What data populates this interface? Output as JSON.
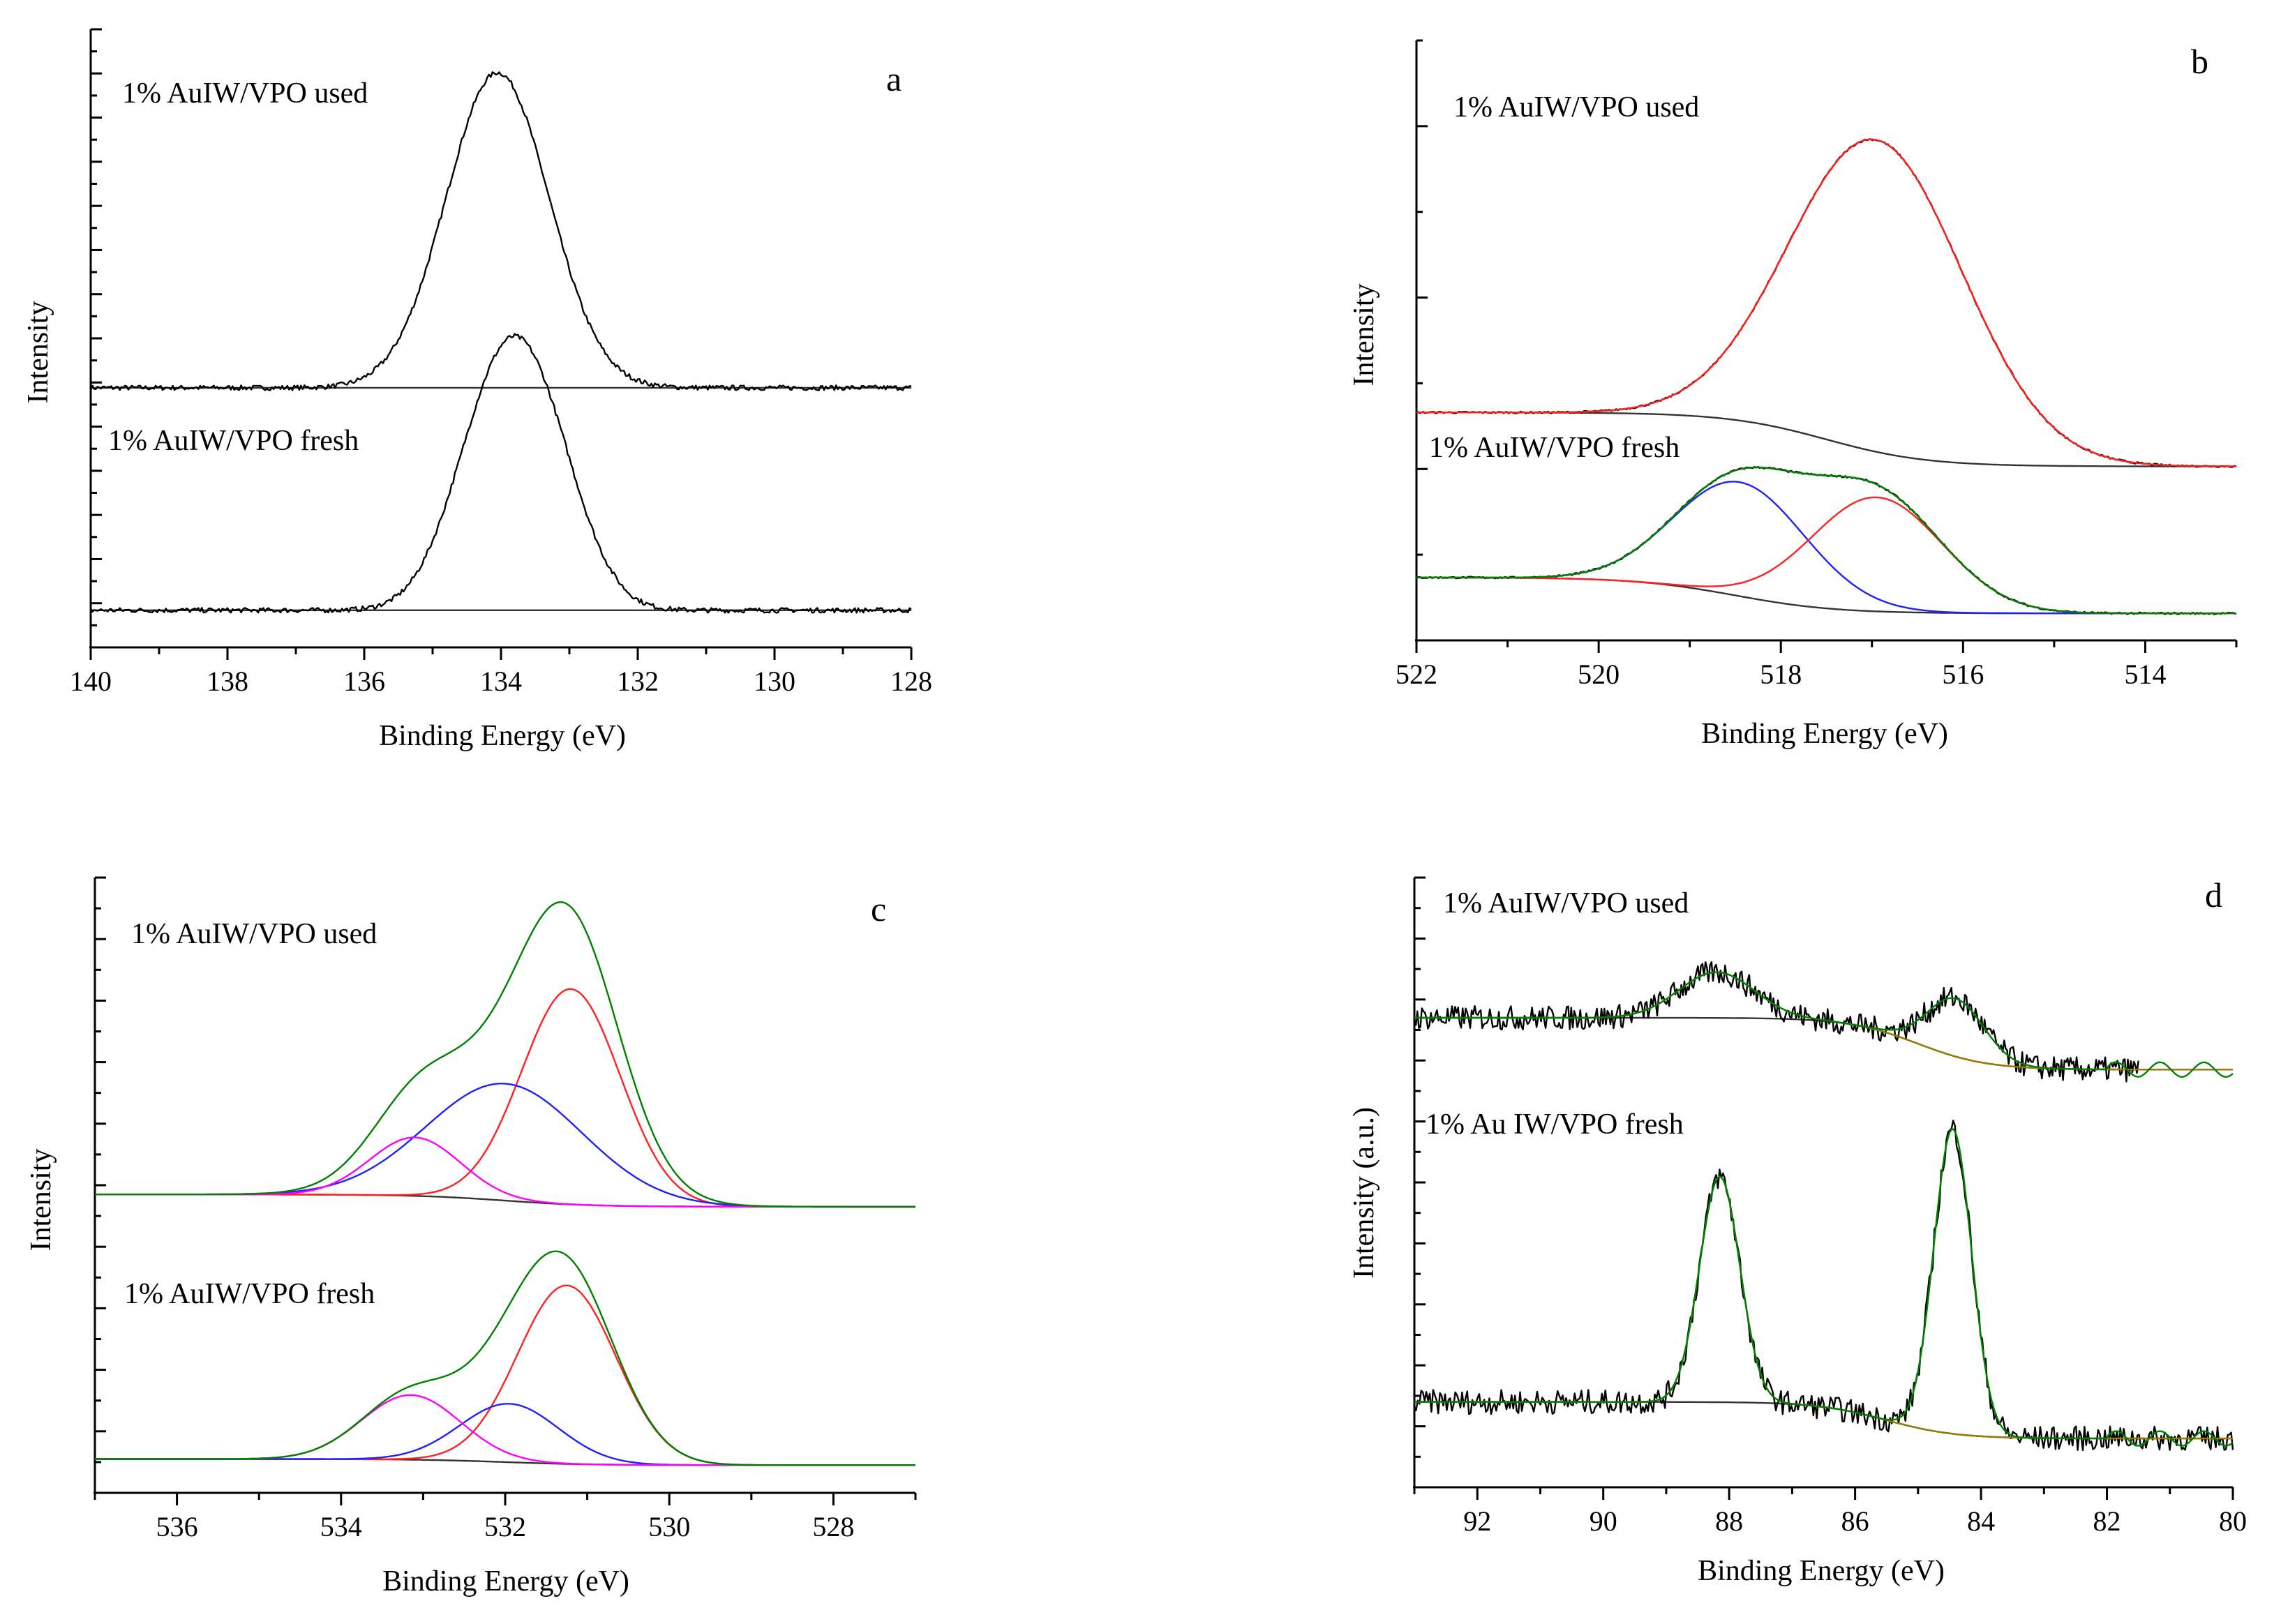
{
  "figure": {
    "colors": {
      "raw": "#000000",
      "baseline": "#333333",
      "fit_envelope": "#008000",
      "component_red": "#ff2020",
      "component_blue": "#2020ff",
      "component_magenta": "#ff00ff",
      "overall_red": "#ff2020",
      "fit_olive": "#9a7a00"
    }
  },
  "chart_data": [
    {
      "panel": "a",
      "type": "line",
      "letter": "a",
      "xlabel": "Binding Energy (eV)",
      "ylabel": "Intensity",
      "xlim": [
        140,
        128
      ],
      "xticks": [
        140,
        138,
        136,
        134,
        132,
        130,
        128
      ],
      "tick_labels": [
        "140",
        "138",
        "136",
        "134",
        "132",
        "130",
        "128"
      ],
      "ylim": [
        0,
        1
      ],
      "series": [
        {
          "name": "1% AuIW/VPO used",
          "label": "1% AuIW/VPO used",
          "offset": 0.42,
          "baseline": 0.0,
          "peaks": [
            {
              "center": 134.05,
              "height": 0.51,
              "width": 0.75
            }
          ],
          "noise": 0.004,
          "components": []
        },
        {
          "name": "1% AuIW/VPO fresh",
          "label": "1% AuIW/VPO fresh",
          "offset": 0.06,
          "baseline": 0.0,
          "peaks": [
            {
              "center": 134.15,
              "height": 0.26,
              "width": 0.62
            },
            {
              "center": 133.45,
              "height": 0.26,
              "width": 0.62
            }
          ],
          "noise": 0.004,
          "components": []
        }
      ]
    },
    {
      "panel": "b",
      "type": "line",
      "letter": "b",
      "xlabel": "Binding Energy (eV)",
      "ylabel": "Intensity",
      "xlim": [
        522,
        513
      ],
      "xticks": [
        522,
        520,
        518,
        516,
        514
      ],
      "tick_labels": [
        "522",
        "520",
        "518",
        "516",
        "514"
      ],
      "ylim": [
        0,
        1
      ],
      "series": [
        {
          "name": "1% AuIW/VPO used",
          "label": "1% AuIW/VPO used",
          "offset": 0.29,
          "baseline_step": 0.09,
          "baseline_center": 517.5,
          "peaks": [
            {
              "center": 516.95,
              "height": 0.52,
              "width": 0.95
            }
          ],
          "noise": 0.0015,
          "components": [
            {
              "center": 516.95,
              "height": 0.52,
              "width": 0.95,
              "color": "overall_red"
            }
          ]
        },
        {
          "name": "1% AuIW/VPO fresh",
          "label": "1% AuIW/VPO fresh",
          "offset": 0.045,
          "baseline_step": 0.06,
          "baseline_center": 518.5,
          "peaks": [
            {
              "center": 518.45,
              "height": 0.19,
              "width": 0.72
            },
            {
              "center": 516.95,
              "height": 0.19,
              "width": 0.72
            }
          ],
          "noise": 0.0015,
          "components": [
            {
              "center": 518.45,
              "height": 0.19,
              "width": 0.72,
              "color": "component_blue"
            },
            {
              "center": 516.95,
              "height": 0.19,
              "width": 0.72,
              "color": "component_red"
            }
          ],
          "envelope": true
        }
      ]
    },
    {
      "panel": "c",
      "type": "line",
      "letter": "c",
      "xlabel": "Binding Energy (eV)",
      "ylabel": "Intensity",
      "xlim": [
        537,
        527
      ],
      "xticks": [
        536,
        534,
        532,
        530,
        528
      ],
      "tick_labels": [
        "536",
        "534",
        "532",
        "530",
        "528"
      ],
      "ylim": [
        0,
        1
      ],
      "series": [
        {
          "name": "1% AuIW/VPO used",
          "label": "1% AuIW/VPO used",
          "offset": 0.465,
          "baseline_step": 0.02,
          "baseline_center": 532,
          "peaks": [],
          "noise": 0.0,
          "components": [
            {
              "center": 531.2,
              "height": 0.35,
              "width": 0.6,
              "color": "component_red"
            },
            {
              "center": 532.0,
              "height": 0.19,
              "width": 0.95,
              "color": "component_blue"
            },
            {
              "center": 533.1,
              "height": 0.095,
              "width": 0.55,
              "color": "component_magenta"
            }
          ],
          "envelope": true
        },
        {
          "name": "1% AuIW/VPO fresh",
          "label": "1% AuIW/VPO fresh",
          "offset": 0.045,
          "baseline_step": 0.01,
          "baseline_center": 532,
          "peaks": [],
          "noise": 0.0,
          "components": [
            {
              "center": 531.25,
              "height": 0.29,
              "width": 0.6,
              "color": "component_red"
            },
            {
              "center": 531.95,
              "height": 0.095,
              "width": 0.6,
              "color": "component_blue"
            },
            {
              "center": 533.15,
              "height": 0.105,
              "width": 0.6,
              "color": "component_magenta"
            }
          ],
          "envelope": true
        }
      ]
    },
    {
      "panel": "d",
      "type": "line",
      "letter": "d",
      "xlabel": "Binding Energy (eV)",
      "ylabel": "Intensity (a.u.)",
      "xlim": [
        93,
        80
      ],
      "xticks": [
        92,
        90,
        88,
        86,
        84,
        82,
        80
      ],
      "tick_labels": [
        "92",
        "90",
        "88",
        "86",
        "84",
        "82",
        "80"
      ],
      "ylim": [
        0,
        1
      ],
      "series": [
        {
          "name": "1% AuIW/VPO used",
          "label": "1% AuIW/VPO used",
          "offset": 0.685,
          "baseline_step": 0.085,
          "baseline_center": 85,
          "peaks": [
            {
              "center": 88.2,
              "height": 0.075,
              "width": 0.6
            },
            {
              "center": 84.4,
              "height": 0.095,
              "width": 0.45
            }
          ],
          "noise": 0.02,
          "raw_range": [
            93,
            81.5
          ],
          "fit_range": [
            93,
            80
          ],
          "components": [
            {
              "center": 88.2,
              "height": 0.075,
              "width": 0.6,
              "color": "fit_olive"
            }
          ],
          "envelope": true
        },
        {
          "name": "1% Au IW/VPO fresh",
          "label": "1% Au IW/VPO fresh",
          "offset": 0.08,
          "baseline_step": 0.06,
          "baseline_center": 85.5,
          "peaks": [
            {
              "center": 88.15,
              "height": 0.37,
              "width": 0.32
            },
            {
              "center": 84.45,
              "height": 0.5,
              "width": 0.3
            }
          ],
          "noise": 0.02,
          "raw_range": [
            93,
            80
          ],
          "fit_range": [
            93,
            80
          ],
          "components": [
            {
              "center": 88.15,
              "height": 0.37,
              "width": 0.32,
              "color": "fit_olive"
            }
          ],
          "envelope": true
        }
      ]
    }
  ]
}
